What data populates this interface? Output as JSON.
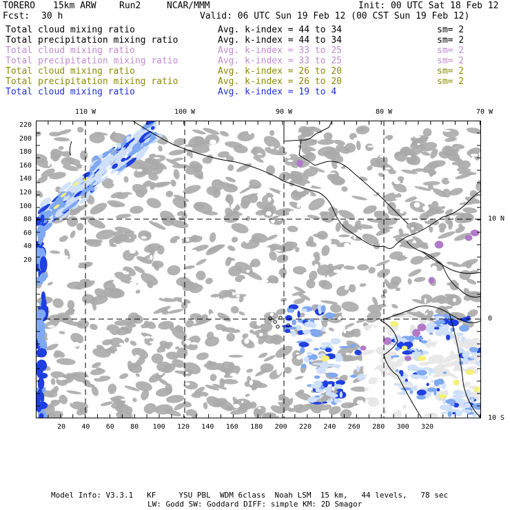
{
  "header": {
    "model": "TORERO",
    "resolution": "15km ARW",
    "run": "Run2",
    "org": "NCAR/MMM",
    "init": "Init: 00 UTC Sat 18 Feb 12",
    "fcst_label": "Fcst:",
    "fcst_value": "30 h",
    "valid": "Valid: 06 UTC Sun 19 Feb 12 (00 CST Sun 19 Feb 12)"
  },
  "legend": [
    {
      "field": "Total cloud mixing ratio",
      "index": "Avg. k-index = 44 to 34",
      "sm": "sm= 2",
      "color": "#000000"
    },
    {
      "field": "Total precipitation mixing ratio",
      "index": "Avg. k-index = 44 to 34",
      "sm": "sm= 2",
      "color": "#000000"
    },
    {
      "field": "Total cloud mixing ratio",
      "index": "Avg. k-index = 33 to 25",
      "sm": "sm= 2",
      "color": "#c08ad0"
    },
    {
      "field": "Total precipitation mixing ratio",
      "index": "Avg. k-index = 33 to 25",
      "sm": "sm= 2",
      "color": "#c08ad0"
    },
    {
      "field": "Total cloud mixing ratio",
      "index": "Avg. k-index = 26 to 20",
      "sm": "sm= 2",
      "color": "#8a8a00"
    },
    {
      "field": "Total precipitation mixing ratio",
      "index": "Avg. k-index = 26 to 20",
      "sm": "sm= 2",
      "color": "#8a8a00"
    },
    {
      "field": "Total cloud mixing ratio",
      "index": "Avg. k-index = 19 to 4",
      "sm": "",
      "color": "#1d2de0"
    }
  ],
  "top_axis": [
    "110 W",
    "100 W",
    "90 W",
    "80 W",
    "70 W"
  ],
  "right_axis": [
    "10 N",
    "0",
    "10 S"
  ],
  "left_axis": [
    "220",
    "200",
    "180",
    "160",
    "140",
    "120",
    "100",
    "80",
    "60",
    "40",
    "20"
  ],
  "bottom_axis": [
    "20",
    "40",
    "60",
    "80",
    "100",
    "120",
    "140",
    "160",
    "180",
    "200",
    "220",
    "240",
    "260",
    "280",
    "300",
    "320"
  ],
  "footer": {
    "line1": "Model Info: V3.3.1   KF     YSU PBL  WDM 6class  Noah LSM  15 km,   44 levels,   78 sec",
    "line2": "LW: Godd SW: Goddard DIFF: simple KM: 2D Smagor"
  },
  "colors": {
    "cloud_gray": "#aaaaaa",
    "blue_light": "#cfe0fb",
    "blue_mid": "#7fa8f2",
    "blue_dark": "#1f3fe0",
    "yellow": "#f5f07a",
    "purple": "#b07ac8",
    "coast": "#000000"
  }
}
